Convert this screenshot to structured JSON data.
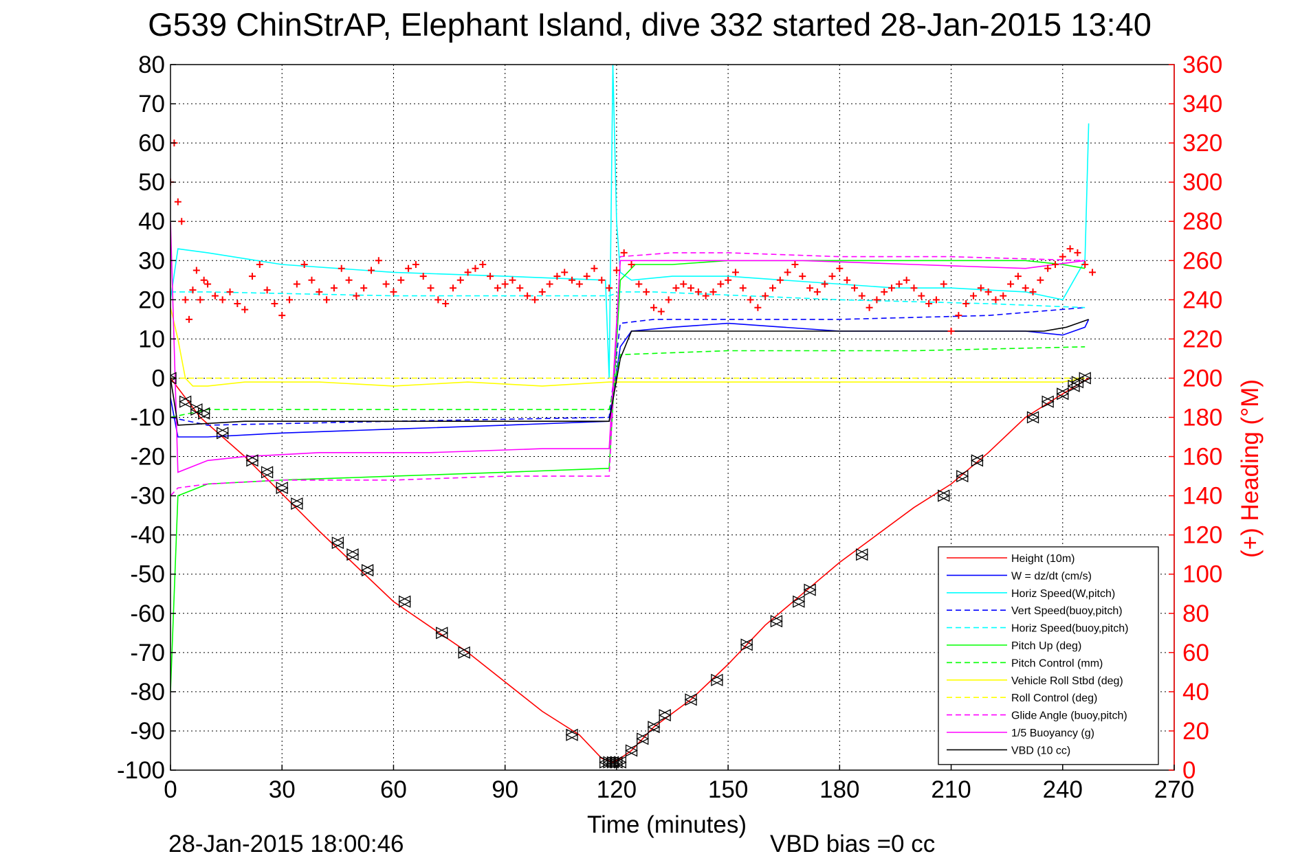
{
  "chart_data": {
    "type": "line",
    "title": "G539 ChinStrAP, Elephant Island, dive 332 started 28-Jan-2015 13:40",
    "xlabel": "Time (minutes)",
    "ylabel": "",
    "y2label": "(+) Heading (°M)",
    "xlim": [
      0,
      270
    ],
    "ylim": [
      -100,
      80
    ],
    "y2lim": [
      0,
      360
    ],
    "x_ticks": [
      "0",
      "30",
      "60",
      "90",
      "120",
      "150",
      "180",
      "210",
      "240",
      "270"
    ],
    "y_ticks": [
      "80",
      "70",
      "60",
      "50",
      "40",
      "30",
      "20",
      "10",
      "0",
      "-10",
      "-20",
      "-30",
      "-40",
      "-50",
      "-60",
      "-70",
      "-80",
      "-90",
      "-100"
    ],
    "y2_ticks": [
      "360",
      "340",
      "320",
      "300",
      "280",
      "260",
      "240",
      "220",
      "200",
      "180",
      "160",
      "140",
      "120",
      "100",
      "80",
      "60",
      "40",
      "20",
      "0"
    ],
    "grid": true,
    "legend_position": "bottom-right",
    "series": [
      {
        "name": "Height (10m)",
        "color": "#ff0000",
        "style": "solid",
        "x": [
          0,
          8,
          20,
          40,
          60,
          80,
          100,
          110,
          116,
          119,
          121,
          124,
          130,
          140,
          150,
          160,
          170,
          180,
          190,
          200,
          210,
          220,
          230,
          240,
          247
        ],
        "y": [
          0,
          -10,
          -20,
          -39,
          -57,
          -70,
          -85,
          -91,
          -97,
          -98,
          -97,
          -95,
          -89,
          -82,
          -73,
          -63,
          -55,
          -47,
          -40,
          -33,
          -27,
          -19,
          -10,
          -4,
          0
        ]
      },
      {
        "name": "W = dz/dt (cm/s)",
        "color": "#0000ff",
        "style": "solid",
        "x": [
          0,
          2,
          10,
          30,
          60,
          90,
          118,
          121,
          124,
          135,
          150,
          165,
          180,
          195,
          215,
          230,
          240,
          246,
          247
        ],
        "y": [
          -5,
          -15,
          -15,
          -14,
          -13,
          -12,
          -11,
          8,
          12,
          13,
          14,
          13,
          12,
          12,
          12,
          12,
          11,
          13,
          15
        ]
      },
      {
        "name": "Horiz Speed(W,pitch)",
        "color": "#00ffff",
        "style": "solid",
        "x": [
          0,
          2,
          10,
          30,
          60,
          90,
          117,
          118,
          119,
          120,
          121,
          124,
          135,
          150,
          165,
          180,
          195,
          210,
          230,
          240,
          246,
          247
        ],
        "y": [
          20,
          33,
          32,
          29,
          27,
          26,
          25,
          0,
          80,
          40,
          27,
          25,
          26,
          26,
          25,
          24,
          23,
          23,
          22,
          20,
          30,
          65
        ]
      },
      {
        "name": "Vert Speed(buoy,pitch)",
        "color": "#0000ff",
        "style": "dashed",
        "x": [
          0,
          10,
          60,
          118,
          121,
          130,
          180,
          220,
          246
        ],
        "y": [
          -10,
          -12,
          -11,
          -10,
          14,
          15,
          15,
          16,
          18
        ]
      },
      {
        "name": "Horiz Speed(buoy,pitch)",
        "color": "#00ffff",
        "style": "dashed",
        "x": [
          0,
          10,
          60,
          118,
          121,
          130,
          180,
          220,
          246
        ],
        "y": [
          22,
          22,
          21,
          21,
          22,
          22,
          20,
          19,
          18
        ]
      },
      {
        "name": "Pitch Up (deg)",
        "color": "#00ff00",
        "style": "solid",
        "x": [
          0,
          2,
          10,
          30,
          60,
          90,
          118,
          121,
          125,
          135,
          150,
          165,
          180,
          195,
          210,
          230,
          240,
          246
        ],
        "y": [
          -80,
          -30,
          -27,
          -26,
          -25,
          -24,
          -23,
          25,
          29,
          29,
          30,
          30,
          30,
          30,
          30,
          30,
          29,
          28
        ]
      },
      {
        "name": "Pitch Control (mm)",
        "color": "#00ff00",
        "style": "dashed",
        "x": [
          0,
          10,
          60,
          118,
          121,
          150,
          200,
          246
        ],
        "y": [
          -10,
          -8,
          -8,
          -8,
          6,
          7,
          7,
          8
        ]
      },
      {
        "name": "Vehicle Roll Stbd (deg)",
        "color": "#ffff00",
        "style": "solid",
        "x": [
          0,
          2,
          4,
          6,
          10,
          20,
          40,
          60,
          80,
          100,
          118,
          121,
          140,
          160,
          180,
          200,
          220,
          240,
          246
        ],
        "y": [
          18,
          10,
          0,
          -2,
          -2,
          -1,
          -1,
          -2,
          -1,
          -2,
          -1,
          -1,
          -1,
          -1,
          -1,
          -1,
          -1,
          -1,
          0
        ]
      },
      {
        "name": "Roll Control (deg)",
        "color": "#ffff00",
        "style": "dashed",
        "x": [
          0,
          10,
          60,
          118,
          121,
          180,
          246
        ],
        "y": [
          0,
          0,
          0,
          0,
          0,
          0,
          0
        ]
      },
      {
        "name": "Glide Angle (buoy,pitch)",
        "color": "#ff00ff",
        "style": "dashed",
        "x": [
          0,
          2,
          10,
          30,
          60,
          90,
          118,
          121,
          135,
          150,
          180,
          210,
          246
        ],
        "y": [
          -30,
          -28,
          -27,
          -26,
          -26,
          -25,
          -25,
          31,
          32,
          32,
          31,
          31,
          30
        ]
      },
      {
        "name": "1/5 Buoyancy (g)",
        "color": "#ff00ff",
        "style": "solid",
        "x": [
          0,
          2,
          10,
          20,
          40,
          70,
          100,
          118,
          121,
          140,
          170,
          200,
          230,
          246
        ],
        "y": [
          40,
          -24,
          -21,
          -20,
          -19,
          -19,
          -18,
          -18,
          30,
          30,
          30,
          29,
          28,
          30
        ]
      },
      {
        "name": "VBD (10 cc)",
        "color": "#000000",
        "style": "solid",
        "x": [
          0,
          2,
          20,
          60,
          100,
          118,
          121,
          124,
          150,
          200,
          235,
          241,
          244,
          247
        ],
        "y": [
          0,
          -12,
          -11,
          -11,
          -11,
          -11,
          5,
          12,
          12,
          12,
          12,
          13,
          14,
          15
        ]
      }
    ],
    "heading": {
      "color": "#ff0000",
      "marker": "+",
      "x": [
        0,
        1,
        2,
        3,
        4,
        5,
        6,
        7,
        8,
        9,
        10,
        12,
        14,
        16,
        18,
        20,
        22,
        24,
        26,
        28,
        30,
        32,
        34,
        36,
        38,
        40,
        42,
        44,
        46,
        48,
        50,
        52,
        54,
        56,
        58,
        60,
        62,
        64,
        66,
        68,
        70,
        72,
        74,
        76,
        78,
        80,
        82,
        84,
        86,
        88,
        90,
        92,
        94,
        96,
        98,
        100,
        102,
        104,
        106,
        108,
        110,
        112,
        114,
        116,
        118,
        120,
        122,
        124,
        126,
        128,
        130,
        132,
        134,
        136,
        138,
        140,
        142,
        144,
        146,
        148,
        150,
        152,
        154,
        156,
        158,
        160,
        162,
        164,
        166,
        168,
        170,
        172,
        174,
        176,
        178,
        180,
        182,
        184,
        186,
        188,
        190,
        192,
        194,
        196,
        198,
        200,
        202,
        204,
        206,
        208,
        210,
        212,
        214,
        216,
        218,
        220,
        222,
        224,
        226,
        228,
        230,
        232,
        234,
        236,
        238,
        240,
        242,
        244,
        246,
        248
      ],
      "y": [
        300,
        320,
        290,
        280,
        240,
        230,
        245,
        255,
        240,
        250,
        248,
        242,
        240,
        244,
        238,
        235,
        252,
        258,
        245,
        238,
        232,
        240,
        248,
        258,
        250,
        244,
        240,
        246,
        256,
        250,
        242,
        246,
        255,
        260,
        248,
        244,
        250,
        256,
        258,
        252,
        246,
        240,
        238,
        246,
        250,
        254,
        256,
        258,
        252,
        246,
        248,
        250,
        246,
        242,
        240,
        244,
        248,
        252,
        254,
        250,
        248,
        252,
        256,
        250,
        246,
        255,
        264,
        258,
        248,
        244,
        236,
        234,
        240,
        246,
        248,
        246,
        244,
        242,
        244,
        248,
        250,
        254,
        246,
        240,
        236,
        242,
        246,
        250,
        254,
        258,
        252,
        246,
        244,
        248,
        252,
        256,
        250,
        246,
        242,
        236,
        240,
        244,
        246,
        248,
        250,
        246,
        242,
        238,
        240,
        248,
        224,
        232,
        238,
        242,
        246,
        244,
        240,
        242,
        248,
        252,
        246,
        244,
        250,
        256,
        258,
        262,
        266,
        264,
        258,
        254
      ]
    },
    "markers_depth": {
      "symbol": "triangle",
      "x": [
        0,
        4,
        7,
        9,
        14,
        22,
        26,
        30,
        34,
        45,
        49,
        53,
        63,
        73,
        79,
        108,
        117,
        118,
        119,
        120,
        121,
        124,
        127,
        130,
        133,
        140,
        147,
        155,
        163,
        169,
        172,
        186,
        208,
        213,
        217,
        232,
        236,
        240,
        243,
        244,
        246
      ],
      "y": [
        0,
        -6,
        -8,
        -9,
        -14,
        -21,
        -24,
        -28,
        -32,
        -42,
        -45,
        -49,
        -57,
        -65,
        -70,
        -91,
        -98,
        -98,
        -98,
        -98,
        -98,
        -95,
        -92,
        -89,
        -86,
        -82,
        -77,
        -68,
        -62,
        -57,
        -54,
        -45,
        -30,
        -25,
        -21,
        -10,
        -6,
        -4,
        -2,
        -1,
        0
      ]
    }
  },
  "footer": {
    "timestamp": "28-Jan-2015 18:00:46",
    "vbd_bias": "VBD bias =0 cc"
  }
}
